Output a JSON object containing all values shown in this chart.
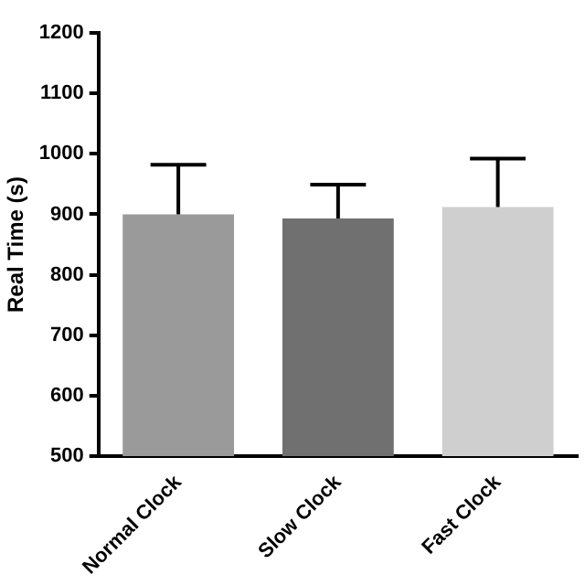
{
  "chart_data": {
    "type": "bar",
    "ylabel": "Real Time (s)",
    "categories": [
      "Normal Clock",
      "Slow Clock",
      "Fast Clock"
    ],
    "values": [
      900,
      893,
      912
    ],
    "colors": [
      "#9a9a9a",
      "#707070",
      "#cfcfcf"
    ],
    "errors": [
      [
        900,
        982
      ],
      [
        893,
        949
      ],
      [
        912,
        992
      ]
    ],
    "ylim": [
      500,
      1200
    ],
    "yticks": [
      500,
      600,
      700,
      800,
      900,
      1000,
      1100,
      1200
    ],
    "grid": false,
    "legend": false
  }
}
